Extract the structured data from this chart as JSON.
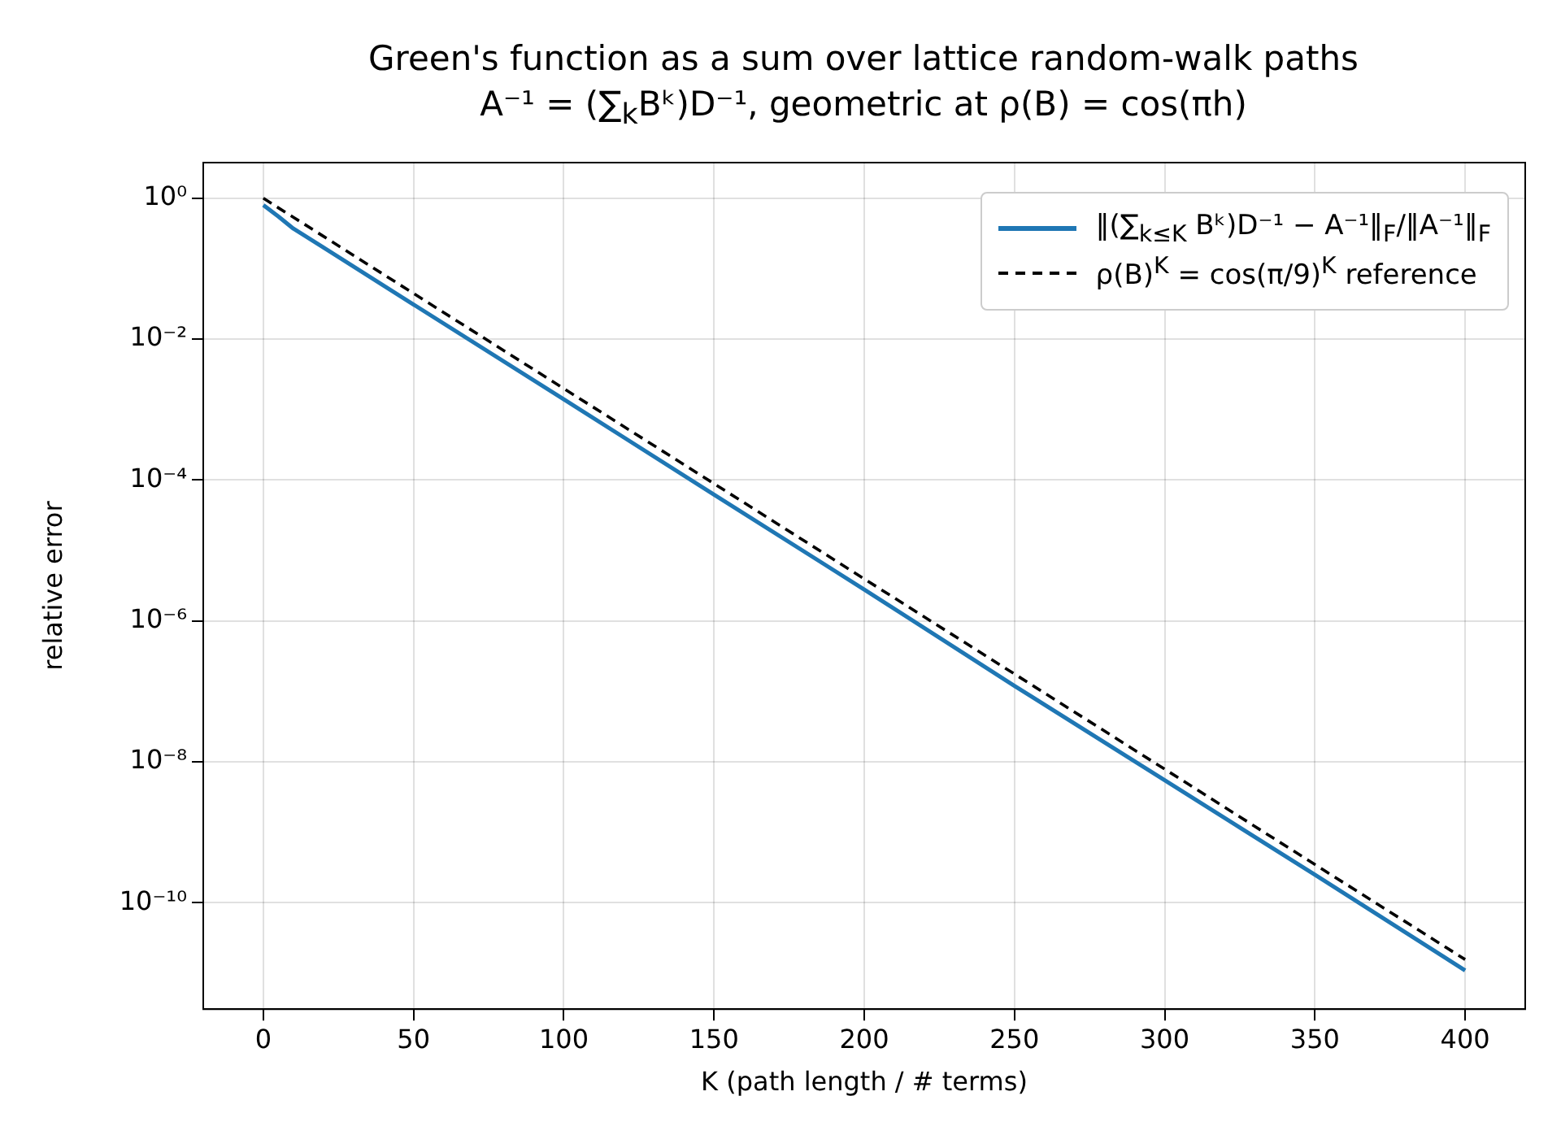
{
  "chart_data": {
    "type": "line",
    "title": "Green's function as a sum over lattice random-walk paths",
    "subtitle": "A⁻¹ = (∑$_{k}$Bᵏ)D⁻¹, geometric at ρ(B) = cos(πh)",
    "xlabel": "K (path length / # terms)",
    "ylabel": "relative error",
    "x": [
      0,
      5,
      10,
      20,
      50,
      100,
      150,
      200,
      250,
      300,
      350,
      400
    ],
    "series": [
      {
        "name": "‖(∑$_{k≤K}$ Bᵏ)D⁻¹ − A⁻¹‖$_{F}$/‖A⁻¹‖$_{F}$",
        "color": "#1f77b4",
        "line_style": "solid",
        "values": [
          0.8,
          0.55,
          0.37,
          0.2,
          0.031,
          0.0014,
          6.2e-05,
          2.8e-06,
          1.2e-07,
          5.5e-09,
          2.5e-10,
          1.1e-11
        ]
      },
      {
        "name": "ρ(B)$^{K}$ = cos(π/9)$^{K}$ reference",
        "color": "#000000",
        "line_style": "dashed",
        "values": [
          1,
          0.73,
          0.537,
          0.288,
          0.0445,
          0.00199,
          8.9e-05,
          3.96e-06,
          1.77e-07,
          7.9e-09,
          3.5e-10,
          1.57e-11
        ]
      }
    ],
    "log": "y",
    "xlim": [
      -20,
      420
    ],
    "xticks": [
      0,
      50,
      100,
      150,
      200,
      250,
      300,
      350,
      400
    ],
    "ylim": [
      3.1e-12,
      3.2
    ],
    "yticks": [
      {
        "value": 1,
        "label": "10⁰"
      },
      {
        "value": 0.01,
        "label": "10⁻²"
      },
      {
        "value": 0.0001,
        "label": "10⁻⁴"
      },
      {
        "value": 1e-06,
        "label": "10⁻⁶"
      },
      {
        "value": 1e-08,
        "label": "10⁻⁸"
      },
      {
        "value": 1e-10,
        "label": "10⁻¹⁰"
      }
    ],
    "grid": true,
    "legend": "top right",
    "marker": "none"
  }
}
